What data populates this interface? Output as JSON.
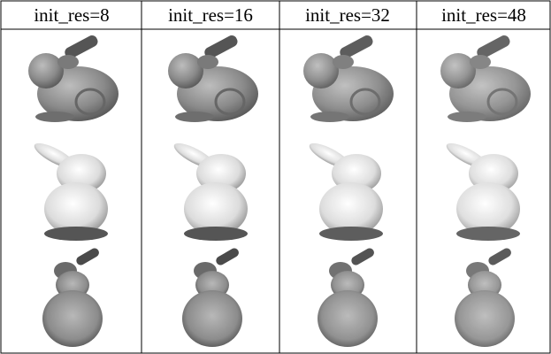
{
  "table": {
    "headers": [
      "init_res=8",
      "init_res=16",
      "init_res=32",
      "init_res=48"
    ]
  }
}
